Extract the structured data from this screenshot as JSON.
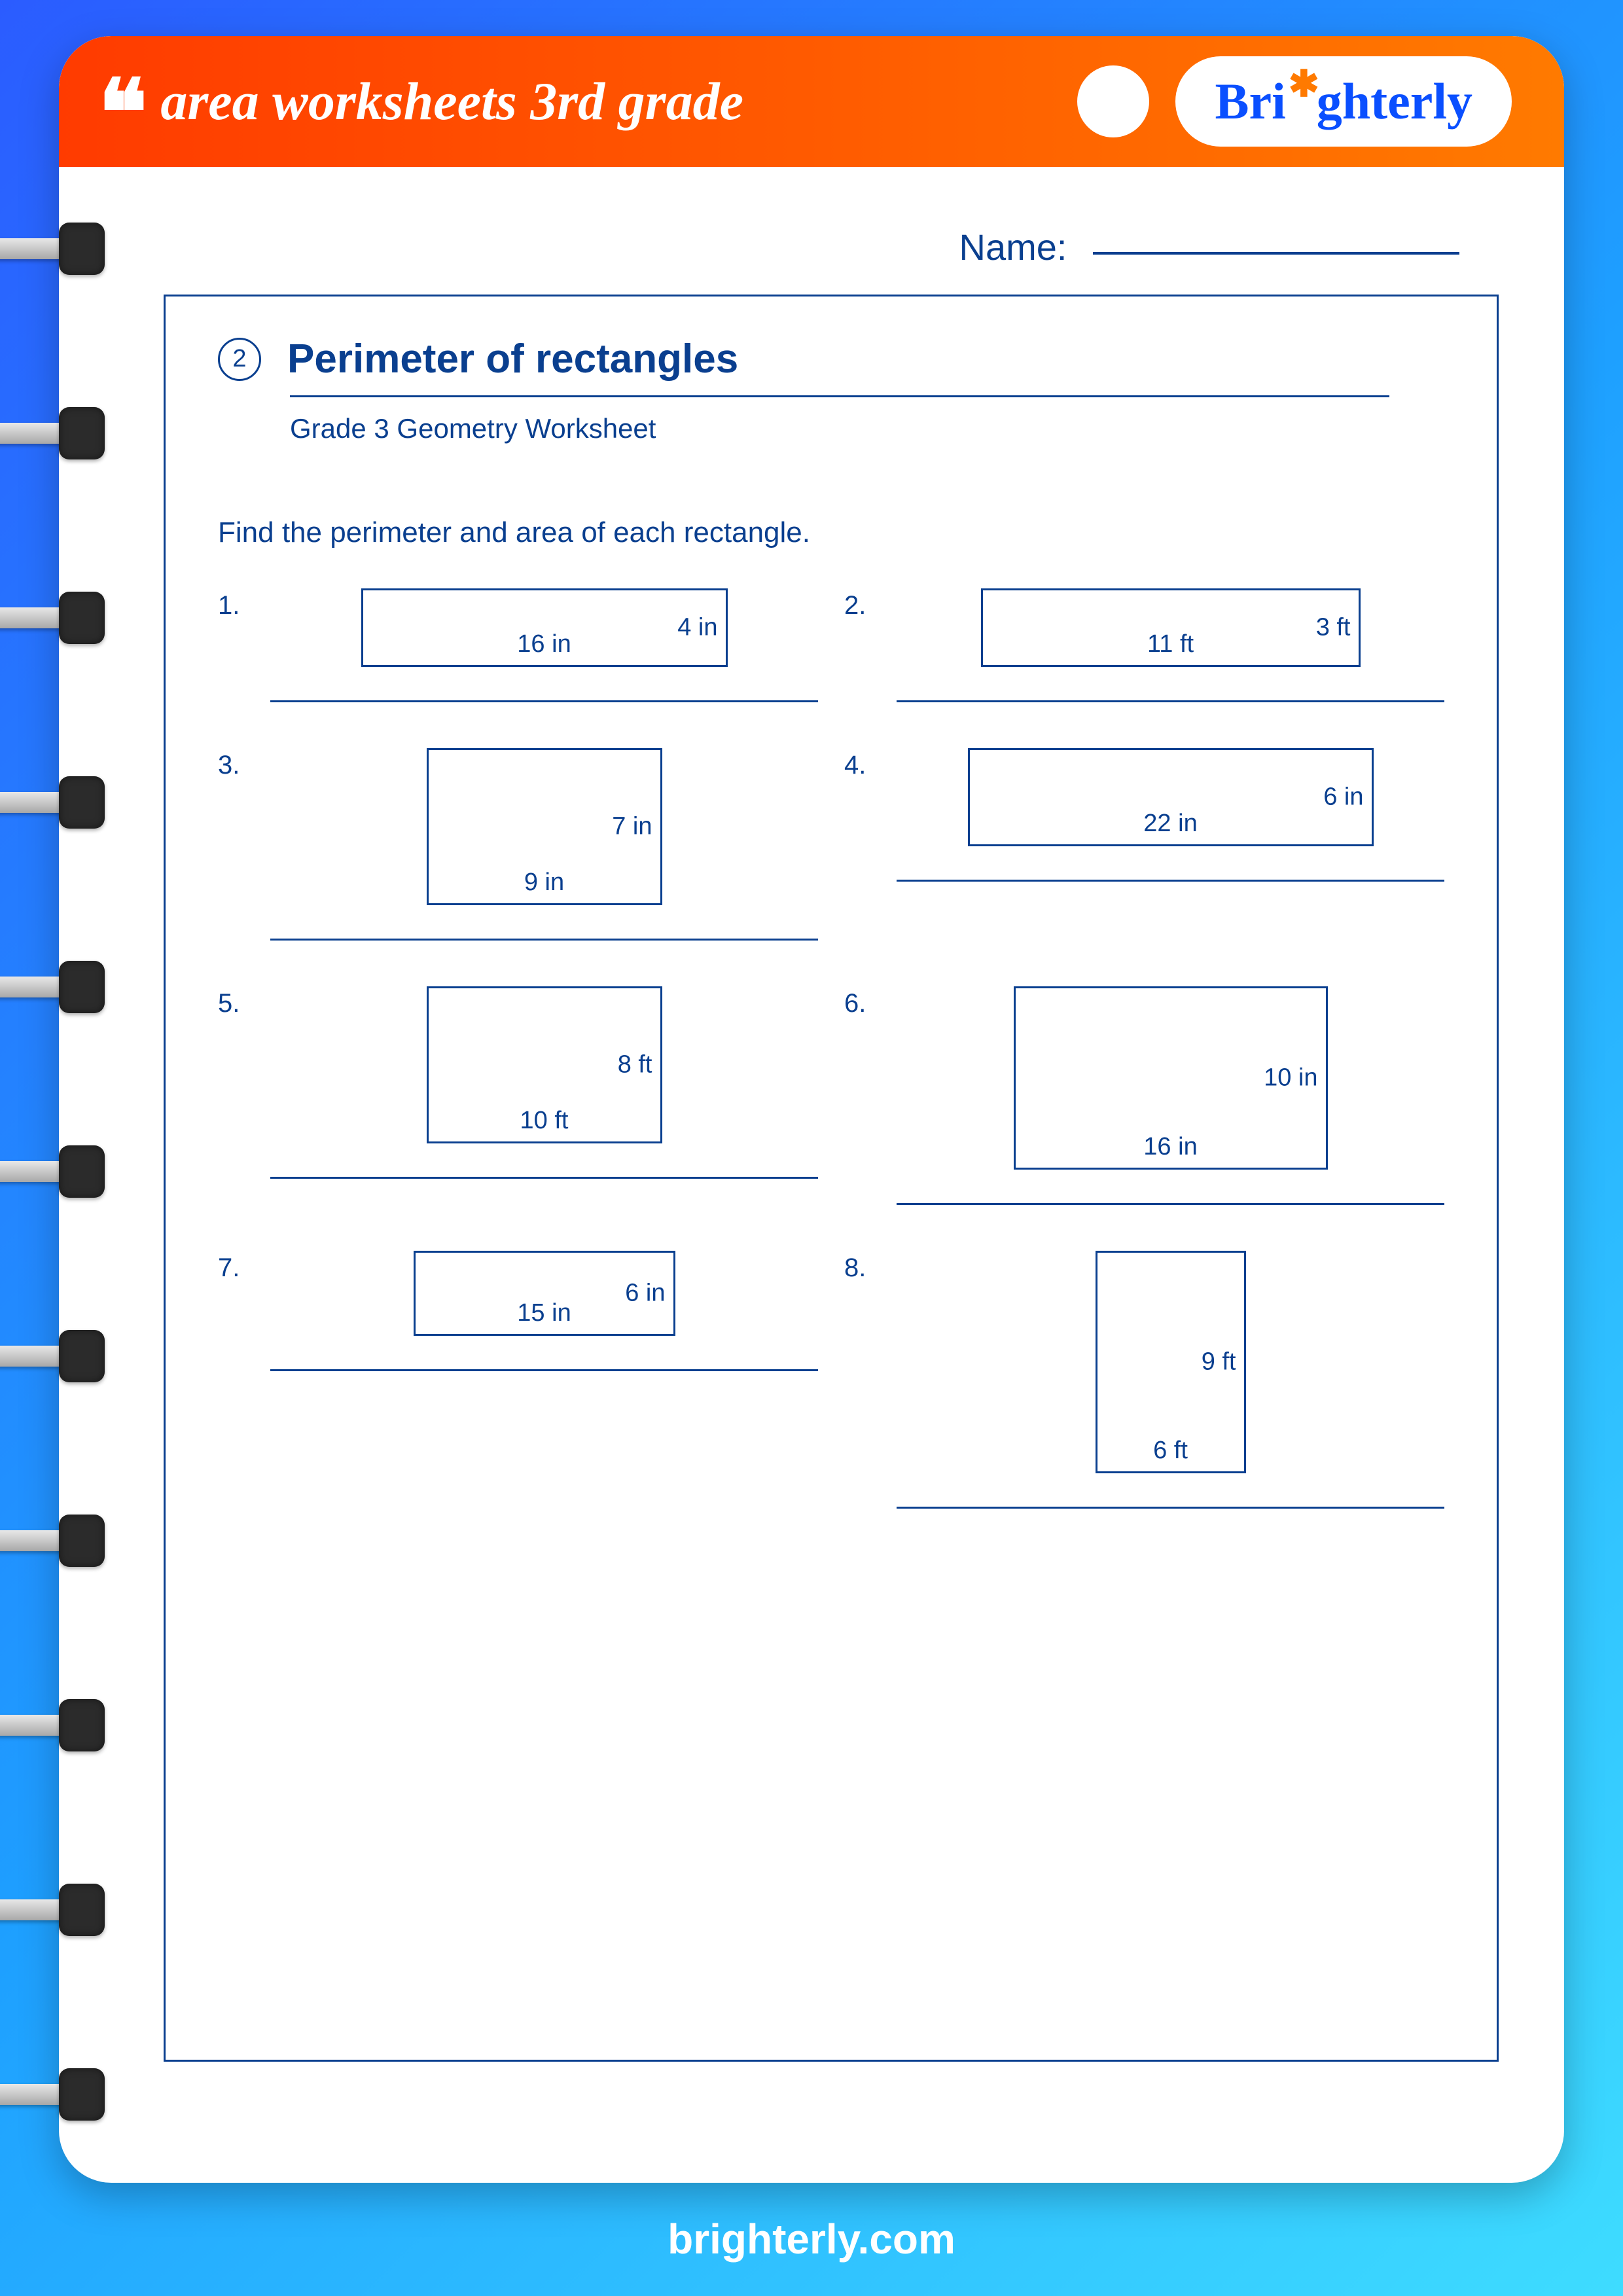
{
  "header": {
    "title": "area worksheets 3rd grade",
    "logo": "Brighterly"
  },
  "name_label": "Name:",
  "worksheet": {
    "number": "2",
    "title": "Perimeter of rectangles",
    "subtitle": "Grade 3 Geometry Worksheet",
    "instruction": "Find the perimeter and area of each rectangle."
  },
  "colors": {
    "primary": "#0a3f8f",
    "header_start": "#ff3b00",
    "header_end": "#ff7a00",
    "bg_start": "#2b5cff",
    "bg_end": "#3edcff",
    "white": "#ffffff"
  },
  "problems": [
    {
      "num": "1.",
      "width": "16  in",
      "height": "4  in",
      "rect_w": 560,
      "rect_h": 120
    },
    {
      "num": "2.",
      "width": "11  ft",
      "height": "3  ft",
      "rect_w": 580,
      "rect_h": 120
    },
    {
      "num": "3.",
      "width": "9  in",
      "height": "7  in",
      "rect_w": 360,
      "rect_h": 240
    },
    {
      "num": "4.",
      "width": "22  in",
      "height": "6  in",
      "rect_w": 620,
      "rect_h": 150
    },
    {
      "num": "5.",
      "width": "10  ft",
      "height": "8  ft",
      "rect_w": 360,
      "rect_h": 240
    },
    {
      "num": "6.",
      "width": "16  in",
      "height": "10  in",
      "rect_w": 480,
      "rect_h": 280
    },
    {
      "num": "7.",
      "width": "15  in",
      "height": "6  in",
      "rect_w": 400,
      "rect_h": 130
    },
    {
      "num": "8.",
      "width": "6  ft",
      "height": "9  ft",
      "rect_w": 230,
      "rect_h": 340
    }
  ],
  "footer": "brighterly.com",
  "ring_count": 11
}
